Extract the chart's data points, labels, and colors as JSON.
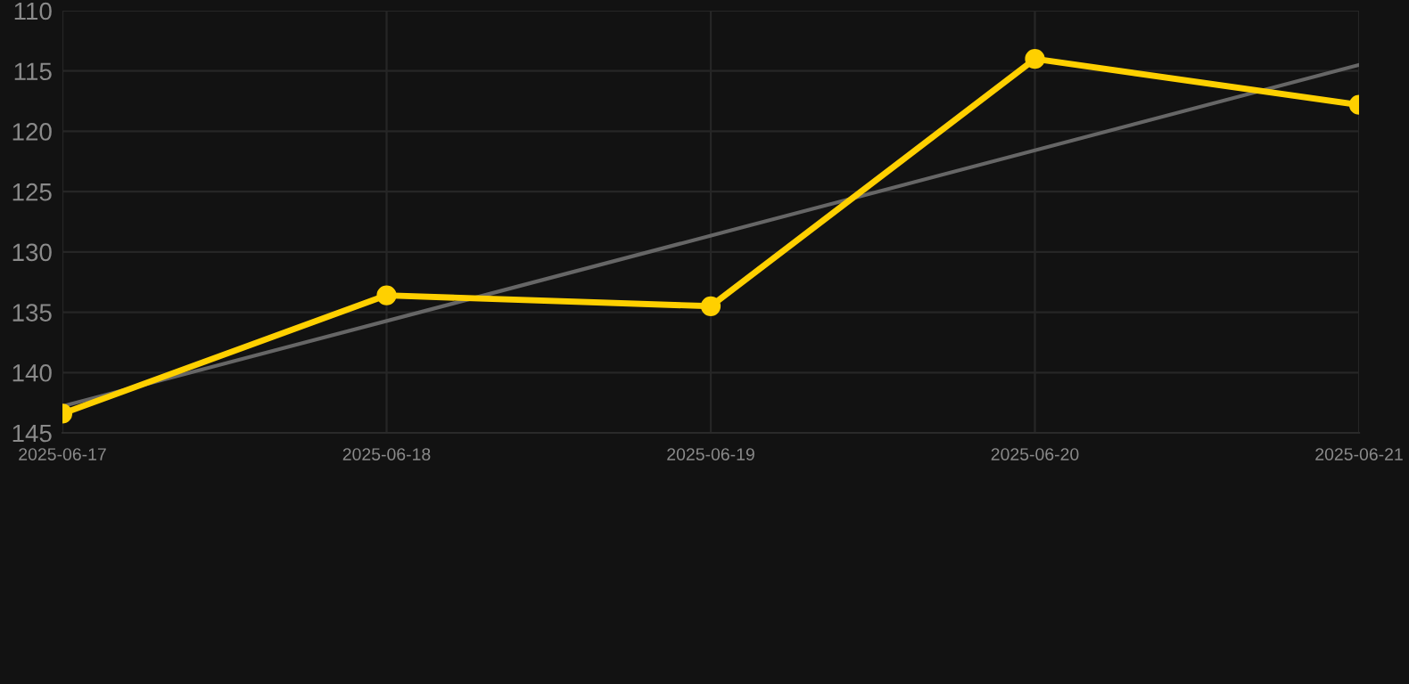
{
  "chart_data": {
    "type": "line",
    "x": [
      "2025-06-17",
      "2025-06-18",
      "2025-06-19",
      "2025-06-20",
      "2025-06-21"
    ],
    "series": [
      {
        "color": "#ffd000",
        "values": [
          143.4,
          133.6,
          134.5,
          114,
          117.8
        ],
        "marker": "circle"
      },
      {
        "type": "line",
        "color": "#666666",
        "x": [
          "2025-06-17",
          "2025-06-21"
        ],
        "values": [
          142.8,
          114.5
        ],
        "marker": "none"
      }
    ],
    "ylim": [
      145,
      110
    ],
    "yticks": [
      110,
      115,
      120,
      125,
      130,
      135,
      140,
      145
    ],
    "xlim": [
      "2025-06-17",
      "2025-06-21"
    ],
    "xticks": [
      "2025-06-17",
      "2025-06-18",
      "2025-06-19",
      "2025-06-20",
      "2025-06-21"
    ],
    "grid": true
  }
}
